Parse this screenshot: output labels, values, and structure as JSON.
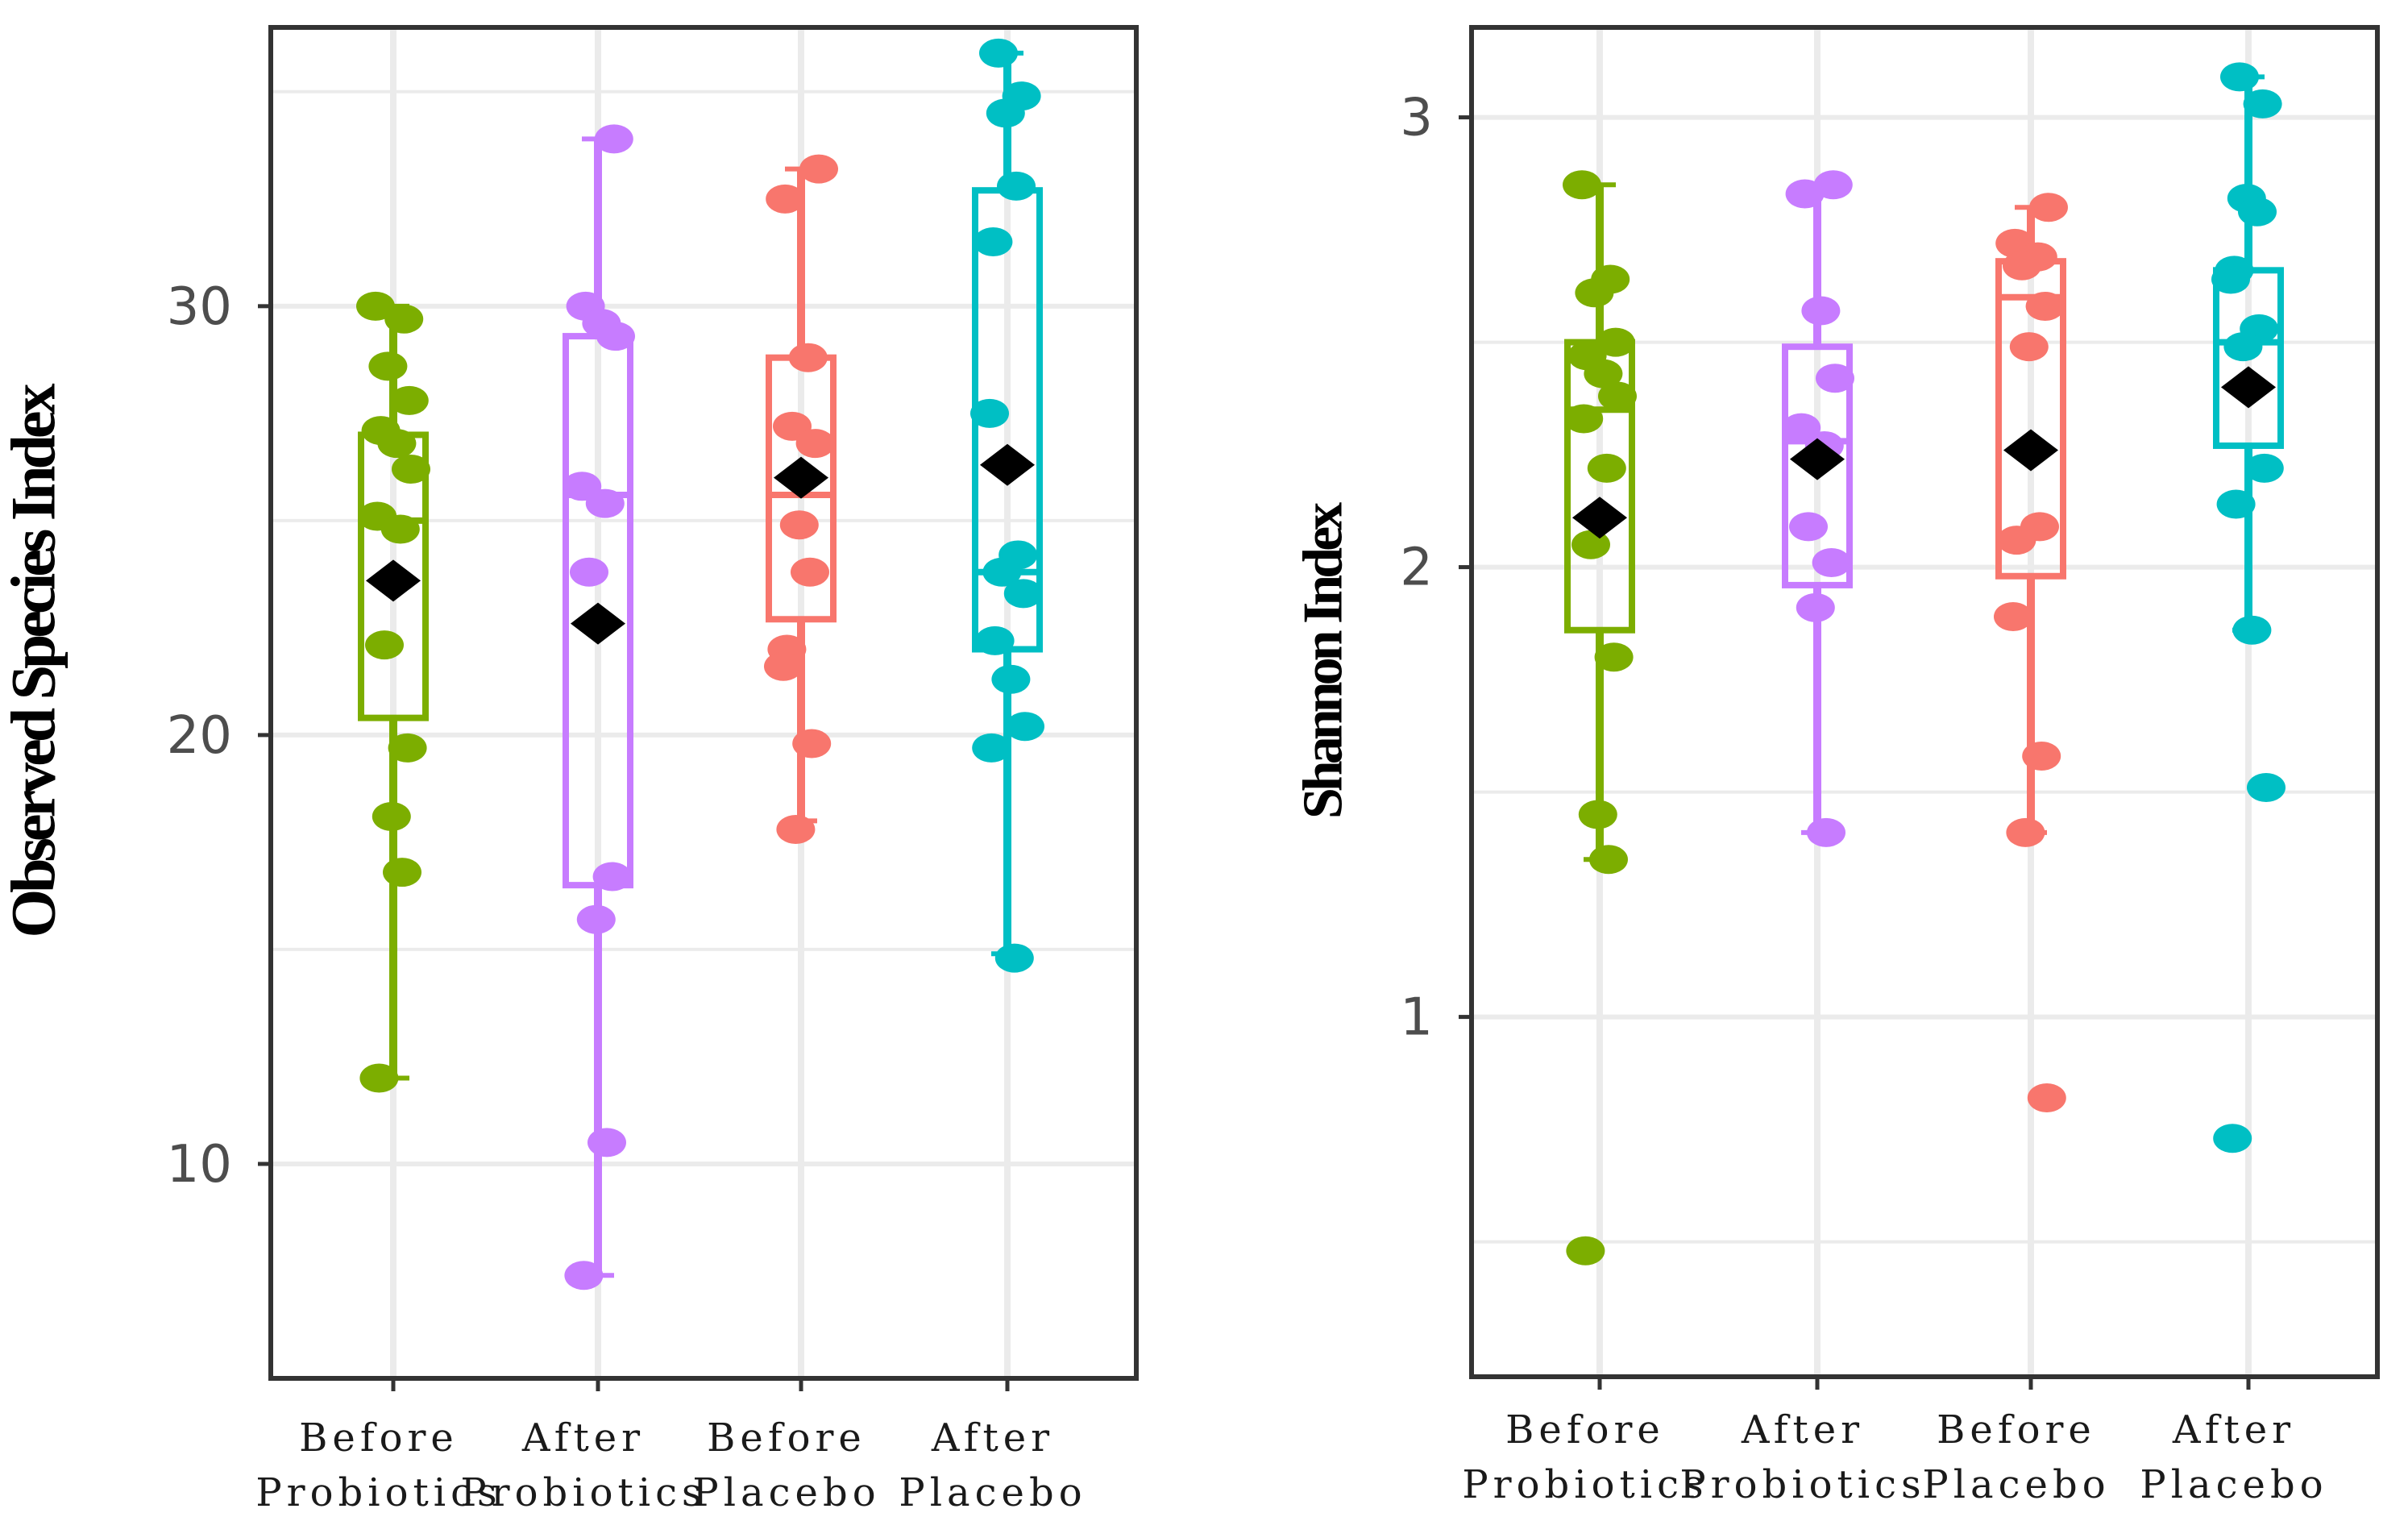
{
  "chart_data": [
    {
      "type": "box",
      "title": "",
      "xlabel": "",
      "ylabel": "Observed Species Index",
      "ylim": [
        5,
        36.5
      ],
      "yticks": [
        10,
        20,
        30
      ],
      "grid": true,
      "categories": [
        {
          "line1": "Before",
          "line2": "Probiotics"
        },
        {
          "line1": "After",
          "line2": "Probiotics"
        },
        {
          "line1": "Before",
          "line2": "Placebo"
        },
        {
          "line1": "After",
          "line2": "Placebo"
        }
      ],
      "series": [
        {
          "name": "Before Probiotics",
          "color": "#7cae00",
          "q1": 20.4,
          "median": 25.0,
          "q3": 27.0,
          "whisker_low": 12.0,
          "whisker_high": 30.0,
          "mean": 23.6,
          "points": [
            30.0,
            29.7,
            28.6,
            27.8,
            27.1,
            26.8,
            26.2,
            25.1,
            24.8,
            22.1,
            19.7,
            18.1,
            16.8,
            12.0
          ]
        },
        {
          "name": "After Probiotics",
          "color": "#c77cff",
          "q1": 16.5,
          "median": 25.6,
          "q3": 29.3,
          "whisker_low": 7.4,
          "whisker_high": 33.9,
          "mean": 22.6,
          "points": [
            33.9,
            30.0,
            29.6,
            29.3,
            25.8,
            25.4,
            23.8,
            16.7,
            15.7,
            10.5,
            7.4
          ]
        },
        {
          "name": "Before Placebo",
          "color": "#f8766d",
          "q1": 22.7,
          "median": 25.6,
          "q3": 28.8,
          "whisker_low": 18.0,
          "whisker_high": 33.2,
          "mean": 26.0,
          "points": [
            33.2,
            32.5,
            28.8,
            27.2,
            26.8,
            24.9,
            23.8,
            22.0,
            21.6,
            19.8,
            17.8
          ]
        },
        {
          "name": "After Placebo",
          "color": "#00bfc4",
          "q1": 22.0,
          "median": 23.8,
          "q3": 32.7,
          "whisker_low": 14.9,
          "whisker_high": 35.9,
          "mean": 26.3,
          "points": [
            35.9,
            34.9,
            34.5,
            32.8,
            31.5,
            27.5,
            24.2,
            23.8,
            23.3,
            22.2,
            21.3,
            20.2,
            19.7,
            14.8
          ]
        }
      ],
      "mean_marker_color": "#000000"
    },
    {
      "type": "box",
      "title": "",
      "xlabel": "",
      "ylabel": "Shannon Index",
      "ylim": [
        0.2,
        3.2
      ],
      "yticks": [
        1,
        2,
        3
      ],
      "grid": true,
      "categories": [
        {
          "line1": "Before",
          "line2": "Probiotics"
        },
        {
          "line1": "After",
          "line2": "Probiotics"
        },
        {
          "line1": "Before",
          "line2": "Placebo"
        },
        {
          "line1": "After",
          "line2": "Placebo"
        }
      ],
      "series": [
        {
          "name": "Before Probiotics",
          "color": "#7cae00",
          "q1": 1.86,
          "median": 2.35,
          "q3": 2.5,
          "whisker_low": 1.35,
          "whisker_high": 2.85,
          "mean": 2.11,
          "points": [
            2.85,
            2.64,
            2.61,
            2.5,
            2.47,
            2.43,
            2.38,
            2.33,
            2.22,
            2.05,
            1.8,
            1.45,
            1.35,
            0.48
          ]
        },
        {
          "name": "After Probiotics",
          "color": "#c77cff",
          "q1": 1.96,
          "median": 2.28,
          "q3": 2.49,
          "whisker_low": 1.41,
          "whisker_high": 2.85,
          "mean": 2.24,
          "points": [
            2.85,
            2.83,
            2.57,
            2.42,
            2.31,
            2.27,
            2.09,
            2.01,
            1.91,
            1.41
          ]
        },
        {
          "name": "Before Placebo",
          "color": "#f8766d",
          "q1": 1.98,
          "median": 2.6,
          "q3": 2.68,
          "whisker_low": 1.41,
          "whisker_high": 2.8,
          "mean": 2.26,
          "points": [
            2.8,
            2.72,
            2.69,
            2.67,
            2.58,
            2.49,
            2.09,
            2.06,
            1.89,
            1.58,
            1.41,
            0.82
          ]
        },
        {
          "name": "After Placebo",
          "color": "#00bfc4",
          "q1": 2.27,
          "median": 2.5,
          "q3": 2.66,
          "whisker_low": 1.86,
          "whisker_high": 3.09,
          "mean": 2.4,
          "points": [
            3.09,
            3.03,
            2.82,
            2.79,
            2.66,
            2.64,
            2.53,
            2.49,
            2.22,
            2.14,
            1.86,
            1.51,
            0.73
          ]
        }
      ],
      "mean_marker_color": "#000000"
    }
  ]
}
